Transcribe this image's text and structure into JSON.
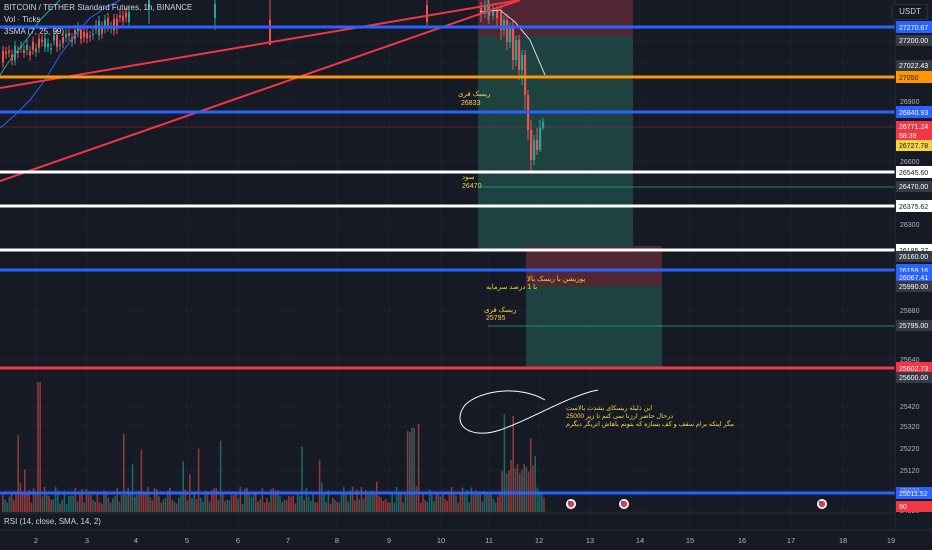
{
  "header": {
    "symbol_line": "BITCOIN / TETHER Standard Futures, 1h, BINANCE",
    "volume_line": "Vol · Ticks",
    "sma_line": "3SMA (7, 25, 99)",
    "currency": "USDT"
  },
  "rsi_label": "RSI (14, close, SMA, 14, 2)",
  "colors": {
    "background": "#161a25",
    "up": "#26a69a",
    "down": "#ef5350",
    "blue_line": "#2962ff",
    "orange_line": "#ff9800",
    "red_line": "#f23645",
    "white_line": "#ffffff",
    "annotation": "#f5d442"
  },
  "chart_data": {
    "type": "candlestick",
    "x_axis_labels": [
      "2",
      "3",
      "4",
      "5",
      "6",
      "7",
      "8",
      "9",
      "10",
      "11",
      "12",
      "13",
      "14",
      "15",
      "16",
      "17",
      "18",
      "19"
    ],
    "y_axis_ticks": [
      27360,
      27200,
      26900,
      26600,
      26300,
      25880,
      25640,
      25420,
      25320,
      25220,
      25120,
      25020,
      24920
    ],
    "horizontal_levels": [
      {
        "value": 27270.67,
        "label": "27270.67",
        "color": "#2962ff"
      },
      {
        "value": 27050,
        "label": "27050",
        "color": "#ff9800"
      },
      {
        "value": 26840.93,
        "label": "26840.93",
        "color": "#2962ff"
      },
      {
        "value": 26545.6,
        "label": "26545.60",
        "color": "#ffffff"
      },
      {
        "value": 26375.62,
        "label": "26375.62",
        "color": "#ffffff"
      },
      {
        "value": 26185.37,
        "label": "26185.37",
        "color": "#ffffff"
      },
      {
        "value": 26159.16,
        "label": "26159.16",
        "color": "#2962ff"
      },
      {
        "value": 25602.73,
        "label": "25602.73",
        "color": "#f23645"
      },
      {
        "value": 25011.52,
        "label": "25011.52",
        "color": "#2962ff"
      }
    ],
    "price_tags": [
      {
        "label": "27200.00",
        "bg": "#363a45"
      },
      {
        "label": "27022.43",
        "bg": "#363a45"
      },
      {
        "label": "26771.24",
        "bg": "#f23645"
      },
      {
        "label": "58:39",
        "bg": "#f23645"
      },
      {
        "label": "26727.78",
        "bg": "#f5d442"
      },
      {
        "label": "26470.00",
        "bg": "#363a45"
      },
      {
        "label": "26160.00",
        "bg": "#363a45"
      },
      {
        "label": "26067.41",
        "bg": "#2962ff"
      },
      {
        "label": "25990.00",
        "bg": "#363a45"
      },
      {
        "label": "25795.00",
        "bg": "#363a45"
      },
      {
        "label": "25600.00",
        "bg": "#363a45"
      },
      {
        "label": "90",
        "bg": "#f23645"
      }
    ],
    "annotations": [
      {
        "text": "ریسک فری",
        "value": "26833"
      },
      {
        "text": "سود",
        "value": "26470"
      },
      {
        "text": "پوزیشن با ریسک بالا",
        "value": "با 1 درصد سرمایه"
      },
      {
        "text": "ریسک فری",
        "value": "25795"
      }
    ],
    "note_lines": [
      "این دلیله ریسکای بشدت بالاست",
      "درحال حاضر ارزنا نمی کنم تا زیر 25000",
      "مگر اینکه برام سقف و کف بسازه که بتونم باهاش اتریگر دیگرم"
    ],
    "x_ticks": [
      {
        "label": "2",
        "x": 36
      },
      {
        "label": "3",
        "x": 87
      },
      {
        "label": "4",
        "x": 136
      },
      {
        "label": "5",
        "x": 187
      },
      {
        "label": "6",
        "x": 238
      },
      {
        "label": "7",
        "x": 288
      },
      {
        "label": "8",
        "x": 337
      },
      {
        "label": "9",
        "x": 389
      },
      {
        "label": "10",
        "x": 441
      },
      {
        "label": "11",
        "x": 489
      },
      {
        "label": "12",
        "x": 539
      },
      {
        "label": "13",
        "x": 590
      },
      {
        "label": "14",
        "x": 640
      },
      {
        "label": "15",
        "x": 690
      },
      {
        "label": "16",
        "x": 742
      },
      {
        "label": "17",
        "x": 791
      },
      {
        "label": "18",
        "x": 843
      },
      {
        "label": "19",
        "x": 891
      }
    ],
    "y_ticks": [
      {
        "label": "27360",
        "y": 62
      },
      {
        "label": "27200",
        "y": 41
      },
      {
        "label": "26900",
        "y": 101
      },
      {
        "label": "26600",
        "y": 161
      },
      {
        "label": "26300",
        "y": 224
      },
      {
        "label": "25880",
        "y": 310
      },
      {
        "label": "25640",
        "y": 359
      },
      {
        "label": "25420",
        "y": 406
      },
      {
        "label": "25320",
        "y": 426
      },
      {
        "label": "25220",
        "y": 448
      },
      {
        "label": "25120",
        "y": 470
      },
      {
        "label": "25020",
        "y": 490
      },
      {
        "label": "24920",
        "y": 510
      }
    ]
  }
}
